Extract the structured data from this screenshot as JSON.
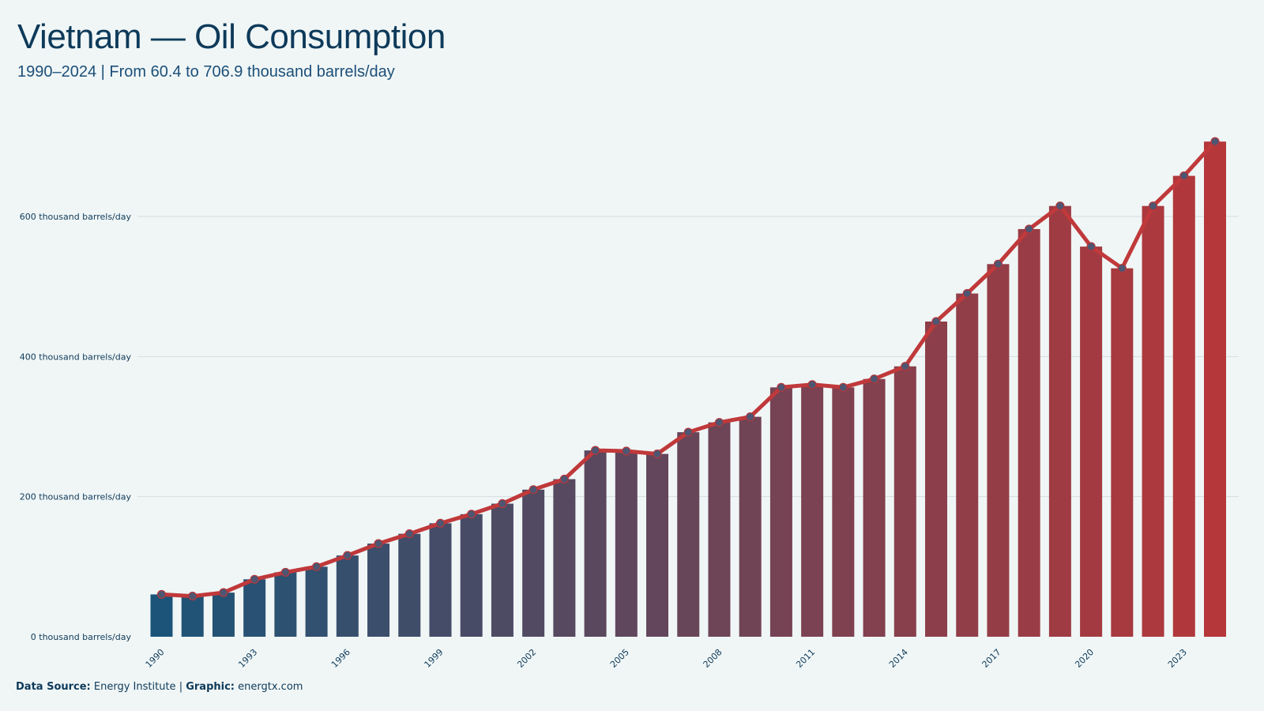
{
  "title": "Vietnam — Oil Consumption",
  "subtitle": "1990–2024 | From 60.4 to 706.9 thousand barrels/day",
  "footer": {
    "source_label": "Data Source:",
    "source_value": "Energy Institute",
    "separator": "|",
    "graphic_label": "Graphic:",
    "graphic_value": "energtx.com"
  },
  "colors": {
    "background": "#f0f6f6",
    "bar_start": "#1b5478",
    "bar_end": "#b5373a",
    "line": "#c0393b",
    "marker_fill": "#4e5672",
    "marker_stroke": "#b5373a",
    "grid": "#d5dcdf"
  },
  "chart_data": {
    "type": "bar",
    "overlay": "line-with-markers",
    "categories": [
      "1990",
      "1991",
      "1992",
      "1993",
      "1994",
      "1995",
      "1996",
      "1997",
      "1998",
      "1999",
      "2000",
      "2001",
      "2002",
      "2003",
      "2004",
      "2005",
      "2006",
      "2007",
      "2008",
      "2009",
      "2010",
      "2011",
      "2012",
      "2013",
      "2014",
      "2015",
      "2016",
      "2017",
      "2018",
      "2019",
      "2020",
      "2021",
      "2022",
      "2023",
      "2024"
    ],
    "values": [
      60.4,
      58,
      63,
      82,
      92,
      100,
      116,
      133,
      147,
      162,
      175,
      190,
      210,
      225,
      266,
      265,
      261,
      292,
      306,
      314,
      356,
      360,
      356,
      368,
      386,
      450,
      490,
      532,
      582,
      615,
      557,
      526,
      615,
      658,
      706.9
    ],
    "x_tick_labels": [
      "1990",
      "1993",
      "1996",
      "1999",
      "2002",
      "2005",
      "2008",
      "2011",
      "2014",
      "2017",
      "2020",
      "2023"
    ],
    "y_ticks": [
      0,
      200,
      400,
      600
    ],
    "y_tick_labels": [
      "0 thousand barrels/day",
      "200 thousand barrels/day",
      "400 thousand barrels/day",
      "600 thousand barrels/day"
    ],
    "ylim": [
      0,
      730
    ],
    "grid": true,
    "legend": "none"
  }
}
